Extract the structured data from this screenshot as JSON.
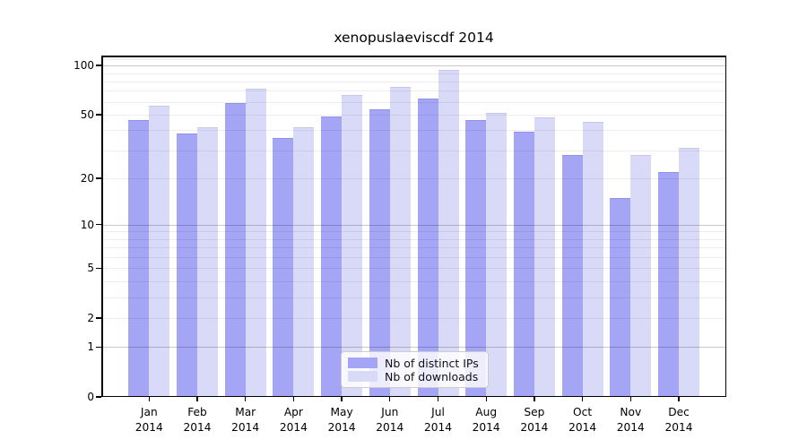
{
  "chart_data": {
    "type": "bar",
    "title": "xenopuslaeviscdf 2014",
    "categories": [
      "Jan",
      "Feb",
      "Mar",
      "Apr",
      "May",
      "Jun",
      "Jul",
      "Aug",
      "Sep",
      "Oct",
      "Nov",
      "Dec"
    ],
    "category_year": "2014",
    "series": [
      {
        "name": "Nb of distinct IPs",
        "key": "ips",
        "values": [
          46,
          38,
          59,
          36,
          49,
          54,
          63,
          46,
          39,
          28,
          15,
          22
        ]
      },
      {
        "name": "Nb of downloads",
        "key": "downloads",
        "values": [
          57,
          42,
          72,
          42,
          66,
          74,
          94,
          51,
          48,
          45,
          28,
          31
        ]
      }
    ],
    "yscale": "log1p",
    "ylim": [
      0,
      115
    ],
    "ytick_labels": [
      0,
      1,
      2,
      5,
      10,
      20,
      50,
      100
    ],
    "yticks_major": [
      1,
      10,
      100
    ],
    "yticks_minor": [
      2,
      3,
      4,
      5,
      6,
      7,
      8,
      9,
      20,
      30,
      40,
      50,
      60,
      70,
      80,
      90,
      110
    ],
    "grid": true,
    "legend_position": "lower center inside"
  },
  "legend": {
    "items": [
      {
        "label": "Nb of distinct IPs",
        "series": "ips"
      },
      {
        "label": "Nb of downloads",
        "series": "downloads"
      }
    ]
  },
  "colors": {
    "bar_ips": "#a5a5f5",
    "bar_downloads": "#d9d9f8",
    "bar_ips_edge": "#9191e8",
    "bar_downloads_edge": "#c6c6ef",
    "grid_minor": "rgba(0,0,0,0.065)",
    "grid_major": "rgba(0,0,0,0.21)",
    "spine": "#000000",
    "legend_border": "#cccccc",
    "legend_bg": "rgba(255,255,255,0.8)"
  }
}
